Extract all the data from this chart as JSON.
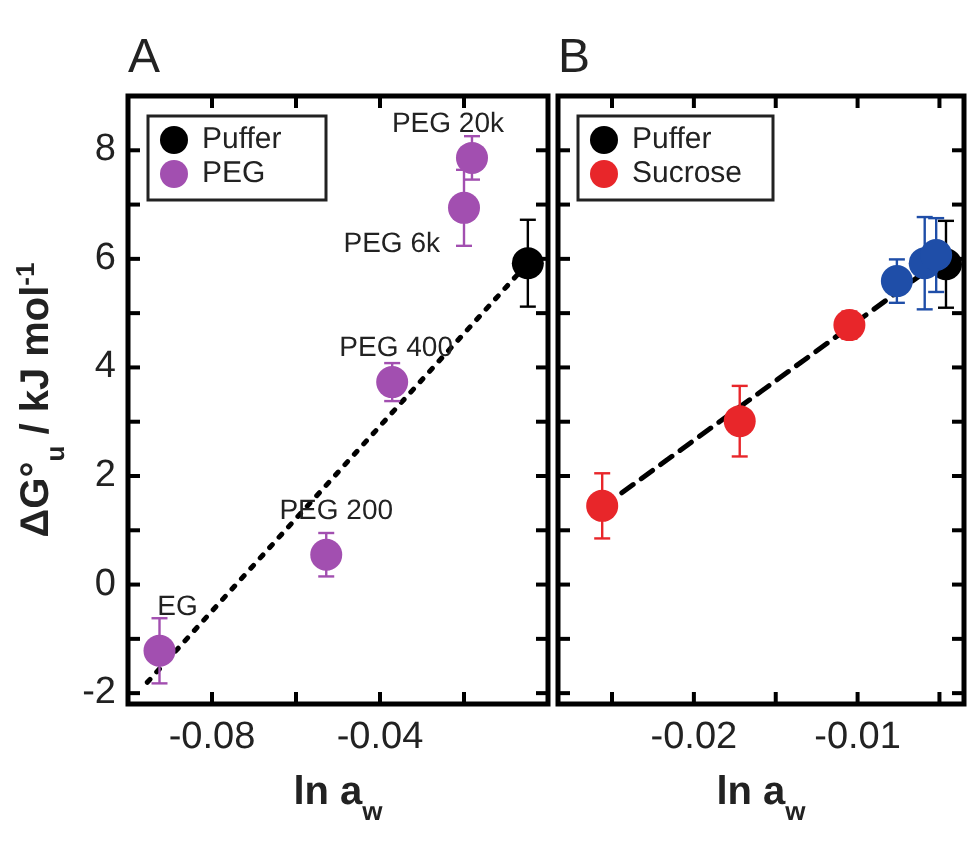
{
  "chart_data": [
    {
      "type": "scatter",
      "title": "A",
      "xlabel": "ln a$_{w}$",
      "ylabel": "ΔG°$_{u}$ / kJ mol$^{-1}$",
      "xlim": [
        -0.1,
        0
      ],
      "ylim": [
        -2.2,
        9
      ],
      "xticks": [
        {
          "value": -0.1,
          "label": null
        },
        {
          "value": -0.08,
          "label": "-0.08"
        },
        {
          "value": -0.06,
          "label": null
        },
        {
          "value": -0.04,
          "label": "-0.04"
        },
        {
          "value": -0.02,
          "label": null
        }
      ],
      "yticks": [
        -2,
        {
          "value": -1,
          "label": null
        },
        0,
        {
          "value": 1,
          "label": null
        },
        2,
        {
          "value": 3,
          "label": null
        },
        4,
        {
          "value": 5,
          "label": null
        },
        6,
        {
          "value": 7,
          "label": null
        },
        8
      ],
      "grid": false,
      "legend": "top left",
      "marker": "circle",
      "series": [
        {
          "type": "line",
          "x": [
            -0.0954,
            -0.0048
          ],
          "values": [
            -1.8,
            5.92
          ],
          "color": "#000000",
          "line_style": "dotted",
          "marker": "none"
        },
        {
          "name": "Puffer",
          "color": "#000000",
          "x": [
            -0.0048
          ],
          "values": [
            5.92
          ],
          "errors": [
            0.8
          ]
        },
        {
          "name": "PEG",
          "color": "#a24fb0",
          "x": [
            -0.0925,
            -0.0528,
            -0.0371,
            -0.02,
            -0.0181
          ],
          "values": [
            -1.22,
            0.55,
            3.73,
            6.94,
            7.86
          ],
          "errors": [
            0.6,
            0.4,
            0.35,
            0.7,
            0.4
          ]
        }
      ],
      "annotations": [
        {
          "text": "EG",
          "x": -0.0925,
          "y": -1.22
        },
        {
          "text": "PEG 200",
          "x": -0.0528,
          "y": 0.55
        },
        {
          "text": "PEG 400",
          "x": -0.0371,
          "y": 3.73
        },
        {
          "text": "PEG 6k",
          "x": -0.02,
          "y": 6.94
        },
        {
          "text": "PEG 20k",
          "x": -0.0181,
          "y": 7.86
        }
      ]
    },
    {
      "type": "scatter",
      "title": "B",
      "xlabel": "ln a$_{w}$",
      "xlim": [
        -0.0283,
        -0.0035
      ],
      "ylim": [
        -2.2,
        9
      ],
      "tick_labels": "x",
      "xticks": [
        {
          "value": -0.025,
          "label": null
        },
        {
          "value": -0.02,
          "label": "-0.02"
        },
        {
          "value": -0.015,
          "label": null
        },
        {
          "value": -0.01,
          "label": "-0.01"
        },
        {
          "value": -0.005,
          "label": null
        }
      ],
      "yticks": [
        -2,
        {
          "value": -1,
          "label": null
        },
        0,
        {
          "value": 1,
          "label": null
        },
        2,
        {
          "value": 3,
          "label": null
        },
        4,
        {
          "value": 5,
          "label": null
        },
        6,
        {
          "value": 7,
          "label": null
        },
        8
      ],
      "grid": false,
      "legend": "top left",
      "marker": "circle",
      "series": [
        {
          "type": "line",
          "x": [
            -0.0244,
            -0.0046
          ],
          "values": [
            1.69,
            6.04
          ],
          "color": "#000000",
          "line_style": "dashed",
          "marker": "none"
        },
        {
          "name": "Puffer",
          "color": "#000000",
          "x": [
            -0.0046
          ],
          "values": [
            5.9
          ],
          "errors": [
            0.8
          ]
        },
        {
          "name": "Sucrose",
          "color": "#e8262a",
          "x": [
            -0.0256,
            -0.0172,
            -0.0105
          ],
          "values": [
            1.45,
            3.01,
            4.78
          ],
          "errors": [
            0.6,
            0.65,
            0.25
          ]
        },
        {
          "color": "#1f4ea8",
          "x": [
            -0.0076,
            -0.0059,
            -0.0052
          ],
          "values": [
            5.59,
            5.92,
            6.07
          ],
          "errors": [
            0.4,
            0.85,
            0.68
          ]
        }
      ]
    }
  ]
}
